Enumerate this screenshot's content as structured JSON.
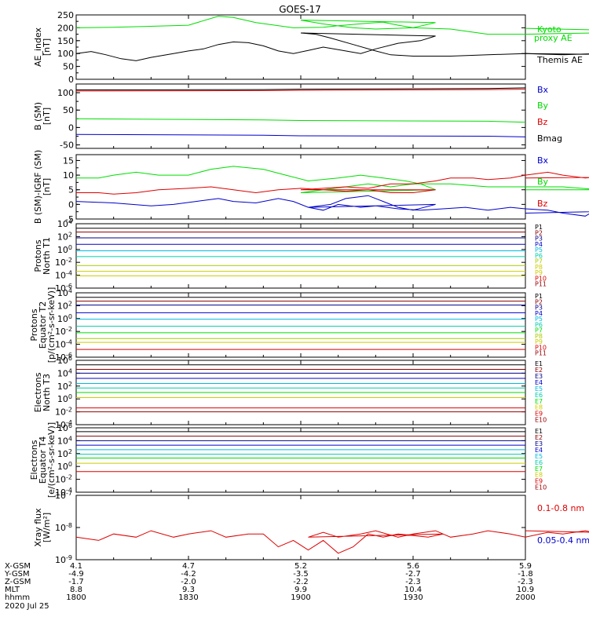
{
  "title": "GOES-17",
  "colors": {
    "black": "#000000",
    "green": "#00dd00",
    "red": "#dd0000",
    "blue": "#0000cc",
    "cyan": "#00bbdd",
    "teal": "#00ccaa",
    "yellow": "#cccc00",
    "lime": "#aacc00",
    "darkred": "#880000",
    "navy": "#000088",
    "purple": "#550088",
    "maroon": "#990000"
  },
  "chart_data": [
    {
      "type": "line",
      "panel": "ae",
      "ylabel": "AE_index\n[nT]",
      "ylim": [
        0,
        250
      ],
      "yticks": [
        "0",
        "50",
        "100",
        "150",
        "200",
        "250"
      ],
      "series": [
        {
          "name": "Kyoto proxy AE",
          "color": "green",
          "x": [
            1800,
            1810,
            1818,
            1830,
            1838,
            1842,
            1848,
            1858,
            1866,
            1870,
            1878,
            1882,
            1886,
            1890,
            1896,
            1900,
            1906,
            1914,
            1920,
            1930,
            1940,
            1950,
            1960,
            1970,
            1980,
            1990,
            2000
          ],
          "values": [
            200,
            202,
            205,
            210,
            245,
            240,
            220,
            200,
            202,
            208,
            218,
            222,
            210,
            200,
            220,
            230,
            215,
            200,
            195,
            200,
            195,
            175,
            175,
            178,
            180,
            188,
            198
          ]
        },
        {
          "name": "Themis AE",
          "color": "black",
          "x": [
            1800,
            1804,
            1808,
            1812,
            1816,
            1820,
            1826,
            1830,
            1834,
            1838,
            1842,
            1846,
            1850,
            1854,
            1858,
            1862,
            1866,
            1870,
            1876,
            1880,
            1886,
            1892,
            1896,
            1900,
            1904,
            1908,
            1914,
            1920,
            1924,
            1930,
            1940,
            1950,
            1960,
            1970,
            1980,
            1990,
            2000
          ],
          "values": [
            100,
            108,
            95,
            80,
            72,
            85,
            100,
            110,
            118,
            135,
            145,
            142,
            130,
            110,
            100,
            112,
            125,
            115,
            100,
            118,
            140,
            150,
            168,
            180,
            175,
            160,
            135,
            110,
            95,
            90,
            90,
            95,
            100,
            95,
            100,
            95,
            100
          ]
        }
      ]
    },
    {
      "type": "line",
      "panel": "bsm",
      "ylabel": "B (SM)\n[nT]",
      "ylim": [
        -60,
        125
      ],
      "yticks": [
        "-50",
        "0",
        "50",
        "100"
      ],
      "series": [
        {
          "name": "Bx",
          "color": "blue",
          "x": [
            1800,
            1850,
            1900,
            1950,
            2000
          ],
          "values": [
            -20,
            -22,
            -24,
            -25,
            -27
          ]
        },
        {
          "name": "By",
          "color": "green",
          "x": [
            1800,
            1850,
            1900,
            1950,
            2000
          ],
          "values": [
            25,
            22,
            20,
            18,
            15
          ]
        },
        {
          "name": "Bz",
          "color": "red",
          "x": [
            1800,
            1850,
            1900,
            1950,
            2000
          ],
          "values": [
            105,
            106,
            107,
            109,
            110
          ]
        },
        {
          "name": "Bmag",
          "color": "black",
          "x": [
            1800,
            1850,
            1900,
            1950,
            2000
          ],
          "values": [
            108,
            109,
            110,
            112,
            114
          ]
        }
      ]
    },
    {
      "type": "line",
      "panel": "bdiff",
      "ylabel": "B (SM)-IGRF (SM)\n[nT]",
      "ylim": [
        -5,
        17
      ],
      "yticks": [
        "-5",
        "0",
        "5",
        "10",
        "15"
      ],
      "series": [
        {
          "name": "Bx",
          "color": "blue",
          "x": [
            1800,
            1810,
            1815,
            1820,
            1826,
            1832,
            1838,
            1842,
            1848,
            1854,
            1858,
            1862,
            1868,
            1872,
            1878,
            1882,
            1886,
            1890,
            1896,
            1902,
            1906,
            1910,
            1916,
            1920,
            1926,
            1932,
            1938,
            1944,
            1950,
            1956,
            1960,
            1966,
            1970,
            1976,
            1980,
            1986,
            1990,
            1996,
            2000
          ],
          "values": [
            1,
            0.5,
            0,
            -0.5,
            0,
            1,
            2,
            1,
            0.5,
            2,
            1,
            -1,
            0,
            2,
            3,
            1,
            -1,
            -2,
            0,
            -1,
            -2,
            0,
            -1,
            -0.5,
            -1.5,
            -2,
            -1.5,
            -1,
            -2,
            -1,
            -1.5,
            -2,
            -3,
            -4,
            -1,
            -2,
            -2.5,
            -2,
            -3
          ]
        },
        {
          "name": "By",
          "color": "green",
          "x": [
            1800,
            1806,
            1810,
            1816,
            1822,
            1830,
            1836,
            1842,
            1850,
            1856,
            1862,
            1870,
            1876,
            1882,
            1888,
            1892,
            1896,
            1900,
            1906,
            1912,
            1918,
            1924,
            1930,
            1940,
            1950,
            1960,
            1970,
            1980,
            1990,
            2000
          ],
          "values": [
            9,
            9,
            10,
            11,
            10,
            10,
            12,
            13,
            12,
            10,
            8,
            9,
            10,
            9,
            8,
            7,
            5,
            4,
            5,
            6,
            7,
            6,
            7,
            7,
            6,
            6,
            6,
            5,
            5,
            5
          ]
        },
        {
          "name": "Bz",
          "color": "red",
          "x": [
            1800,
            1806,
            1810,
            1816,
            1822,
            1830,
            1836,
            1842,
            1848,
            1854,
            1860,
            1866,
            1872,
            1878,
            1884,
            1890,
            1896,
            1900,
            1906,
            1912,
            1918,
            1924,
            1930,
            1936,
            1940,
            1946,
            1950,
            1956,
            1960,
            1966,
            1970,
            1976,
            1980,
            1986,
            1990,
            1996,
            2000
          ],
          "values": [
            4,
            4,
            3.5,
            4,
            5,
            5.5,
            6,
            5,
            4,
            5,
            5.5,
            5,
            4.5,
            5,
            4,
            4,
            5,
            5,
            5.5,
            6,
            5.5,
            7,
            7,
            8,
            9,
            9,
            8.5,
            9,
            10,
            11,
            10,
            9,
            9.5,
            10,
            9,
            9.5,
            9
          ]
        }
      ]
    },
    {
      "type": "line",
      "panel": "p1",
      "ylabel": "Protons\nNorth T1",
      "yscale": "log",
      "ylim": [
        -6,
        4
      ],
      "yticks": [
        "10^-6",
        "10^-4",
        "10^-2",
        "10^0",
        "10^2",
        "10^4"
      ],
      "series": [
        {
          "name": "P1",
          "color": "black",
          "logvalue": 3.3
        },
        {
          "name": "P2",
          "color": "darkred",
          "logvalue": 2.7
        },
        {
          "name": "P3",
          "color": "navy",
          "logvalue": 1.8
        },
        {
          "name": "P4",
          "color": "blue",
          "logvalue": 0.8
        },
        {
          "name": "P5",
          "color": "cyan",
          "logvalue": -0.2
        },
        {
          "name": "P6",
          "color": "teal",
          "logvalue": -1.1
        },
        {
          "name": "P7",
          "color": "lime",
          "logvalue": -2.5
        },
        {
          "name": "P8",
          "color": "yellow",
          "logvalue": -3.4
        },
        {
          "name": "P9",
          "color": "yellow",
          "logvalue": -4.1
        },
        {
          "name": "P10",
          "color": "red",
          "logvalue": null
        },
        {
          "name": "P11",
          "color": "maroon",
          "logvalue": null
        }
      ]
    },
    {
      "type": "line",
      "panel": "p2",
      "ylabel": "Protons\nEquator T2\n[p/(cm²-s-sr-keV)]",
      "yscale": "log",
      "ylim": [
        -6,
        4
      ],
      "yticks": [
        "10^-6",
        "10^-4",
        "10^-2",
        "10^0",
        "10^2",
        "10^4"
      ],
      "series": [
        {
          "name": "P1",
          "color": "black",
          "logvalue": 3.3
        },
        {
          "name": "P2",
          "color": "darkred",
          "logvalue": 2.7
        },
        {
          "name": "P3",
          "color": "navy",
          "logvalue": 2.1
        },
        {
          "name": "P4",
          "color": "blue",
          "logvalue": 0.9
        },
        {
          "name": "P5",
          "color": "cyan",
          "logvalue": -0.1
        },
        {
          "name": "P6",
          "color": "teal",
          "logvalue": -1.2
        },
        {
          "name": "P7",
          "color": "green",
          "logvalue": -2.2
        },
        {
          "name": "P8",
          "color": "lime",
          "logvalue": -3.1
        },
        {
          "name": "P9",
          "color": "yellow",
          "logvalue": -3.7
        },
        {
          "name": "P10",
          "color": "red",
          "logvalue": -4.8
        },
        {
          "name": "P11",
          "color": "maroon",
          "logvalue": null
        }
      ]
    },
    {
      "type": "line",
      "panel": "e3",
      "ylabel": "Electrons\nNorth T3",
      "yscale": "log",
      "ylim": [
        -4,
        6
      ],
      "yticks": [
        "10^-4",
        "10^-2",
        "10^0",
        "10^2",
        "10^4",
        "10^6"
      ],
      "series": [
        {
          "name": "E1",
          "color": "black",
          "logvalue": 5.3
        },
        {
          "name": "E2",
          "color": "darkred",
          "logvalue": 4.6
        },
        {
          "name": "E3",
          "color": "navy",
          "logvalue": 4.0
        },
        {
          "name": "E4",
          "color": "blue",
          "logvalue": 3.2
        },
        {
          "name": "E5",
          "color": "cyan",
          "logvalue": 2.4
        },
        {
          "name": "E6",
          "color": "teal",
          "logvalue": 1.7
        },
        {
          "name": "E7",
          "color": "green",
          "logvalue": 1.0
        },
        {
          "name": "E8",
          "color": "yellow",
          "logvalue": 0.2
        },
        {
          "name": "E9",
          "color": "red",
          "logvalue": -1.4
        },
        {
          "name": "E10",
          "color": "maroon",
          "logvalue": -2.0
        }
      ]
    },
    {
      "type": "line",
      "panel": "e4",
      "ylabel": "Electrons\nEquator T4\n[e/(cm²-s-sr-keV)]",
      "yscale": "log",
      "ylim": [
        -4,
        6
      ],
      "yticks": [
        "10^-4",
        "10^-2",
        "10^0",
        "10^2",
        "10^4",
        "10^6"
      ],
      "series": [
        {
          "name": "E1",
          "color": "black",
          "logvalue": 5.4
        },
        {
          "name": "E2",
          "color": "darkred",
          "logvalue": 4.7
        },
        {
          "name": "E3",
          "color": "navy",
          "logvalue": 4.0
        },
        {
          "name": "E4",
          "color": "blue",
          "logvalue": 3.3
        },
        {
          "name": "E5",
          "color": "cyan",
          "logvalue": 2.6
        },
        {
          "name": "E6",
          "color": "teal",
          "logvalue": 1.9
        },
        {
          "name": "E7",
          "color": "green",
          "logvalue": 1.3
        },
        {
          "name": "E8",
          "color": "yellow",
          "logvalue": 0.5
        },
        {
          "name": "E9",
          "color": "red",
          "logvalue": -0.8
        },
        {
          "name": "E10",
          "color": "maroon",
          "logvalue": null
        }
      ]
    },
    {
      "type": "line",
      "panel": "xray",
      "ylabel": "Xray flux\n[W/m²]",
      "yscale": "log",
      "ylim": [
        -9,
        -7
      ],
      "yticks": [
        "10^-9",
        "10^-8",
        "10^-7"
      ],
      "series": [
        {
          "name": "0.1-0.8 nm",
          "color": "red",
          "x": [
            1800,
            1806,
            1810,
            1816,
            1820,
            1826,
            1830,
            1836,
            1840,
            1846,
            1850,
            1854,
            1858,
            1862,
            1866,
            1870,
            1874,
            1878,
            1882,
            1886,
            1890,
            1894,
            1898,
            1902,
            1906,
            1910,
            1916,
            1920,
            1926,
            1930,
            1936,
            1940,
            1946,
            1950,
            1956,
            1960,
            1966,
            1970,
            1976,
            1980,
            1986,
            1990,
            1996,
            2000
          ],
          "values": [
            -8.3,
            -8.4,
            -8.2,
            -8.3,
            -8.1,
            -8.3,
            -8.2,
            -8.1,
            -8.3,
            -8.2,
            -8.2,
            -8.6,
            -8.4,
            -8.7,
            -8.4,
            -8.8,
            -8.6,
            -8.2,
            -8.3,
            -8.2,
            -8.25,
            -8.3,
            -8.2,
            -8.3,
            -8.15,
            -8.3,
            -8.2,
            -8.1,
            -8.3,
            -8.2,
            -8.1,
            -8.3,
            -8.2,
            -8.1,
            -8.2,
            -8.3,
            -8.15,
            -8.2,
            -8.1,
            -8.2,
            -8.25,
            -8.1,
            -8.2,
            -8.1
          ]
        },
        {
          "name": "0.05-0.4 nm",
          "color": "blue",
          "x": [],
          "values": []
        }
      ]
    }
  ],
  "xaxis": {
    "tick_hhmm": [
      1800,
      1830,
      1900,
      1930,
      2000
    ],
    "rows": [
      {
        "label": "X-GSM",
        "values": [
          "4.1",
          "4.7",
          "5.2",
          "5.6",
          "5.9"
        ]
      },
      {
        "label": "Y-GSM",
        "values": [
          "-4.9",
          "-4.2",
          "-3.5",
          "-2.7",
          "-1.8"
        ]
      },
      {
        "label": "Z-GSM",
        "values": [
          "-1.7",
          "-2.0",
          "-2.2",
          "-2.3",
          "-2.3"
        ]
      },
      {
        "label": "MLT",
        "values": [
          "8.8",
          "9.3",
          "9.9",
          "10.4",
          "10.9"
        ]
      },
      {
        "label": "hhmm",
        "values": [
          "1800",
          "1830",
          "1900",
          "1930",
          "2000"
        ]
      }
    ],
    "date": "2020 Jul 25"
  }
}
